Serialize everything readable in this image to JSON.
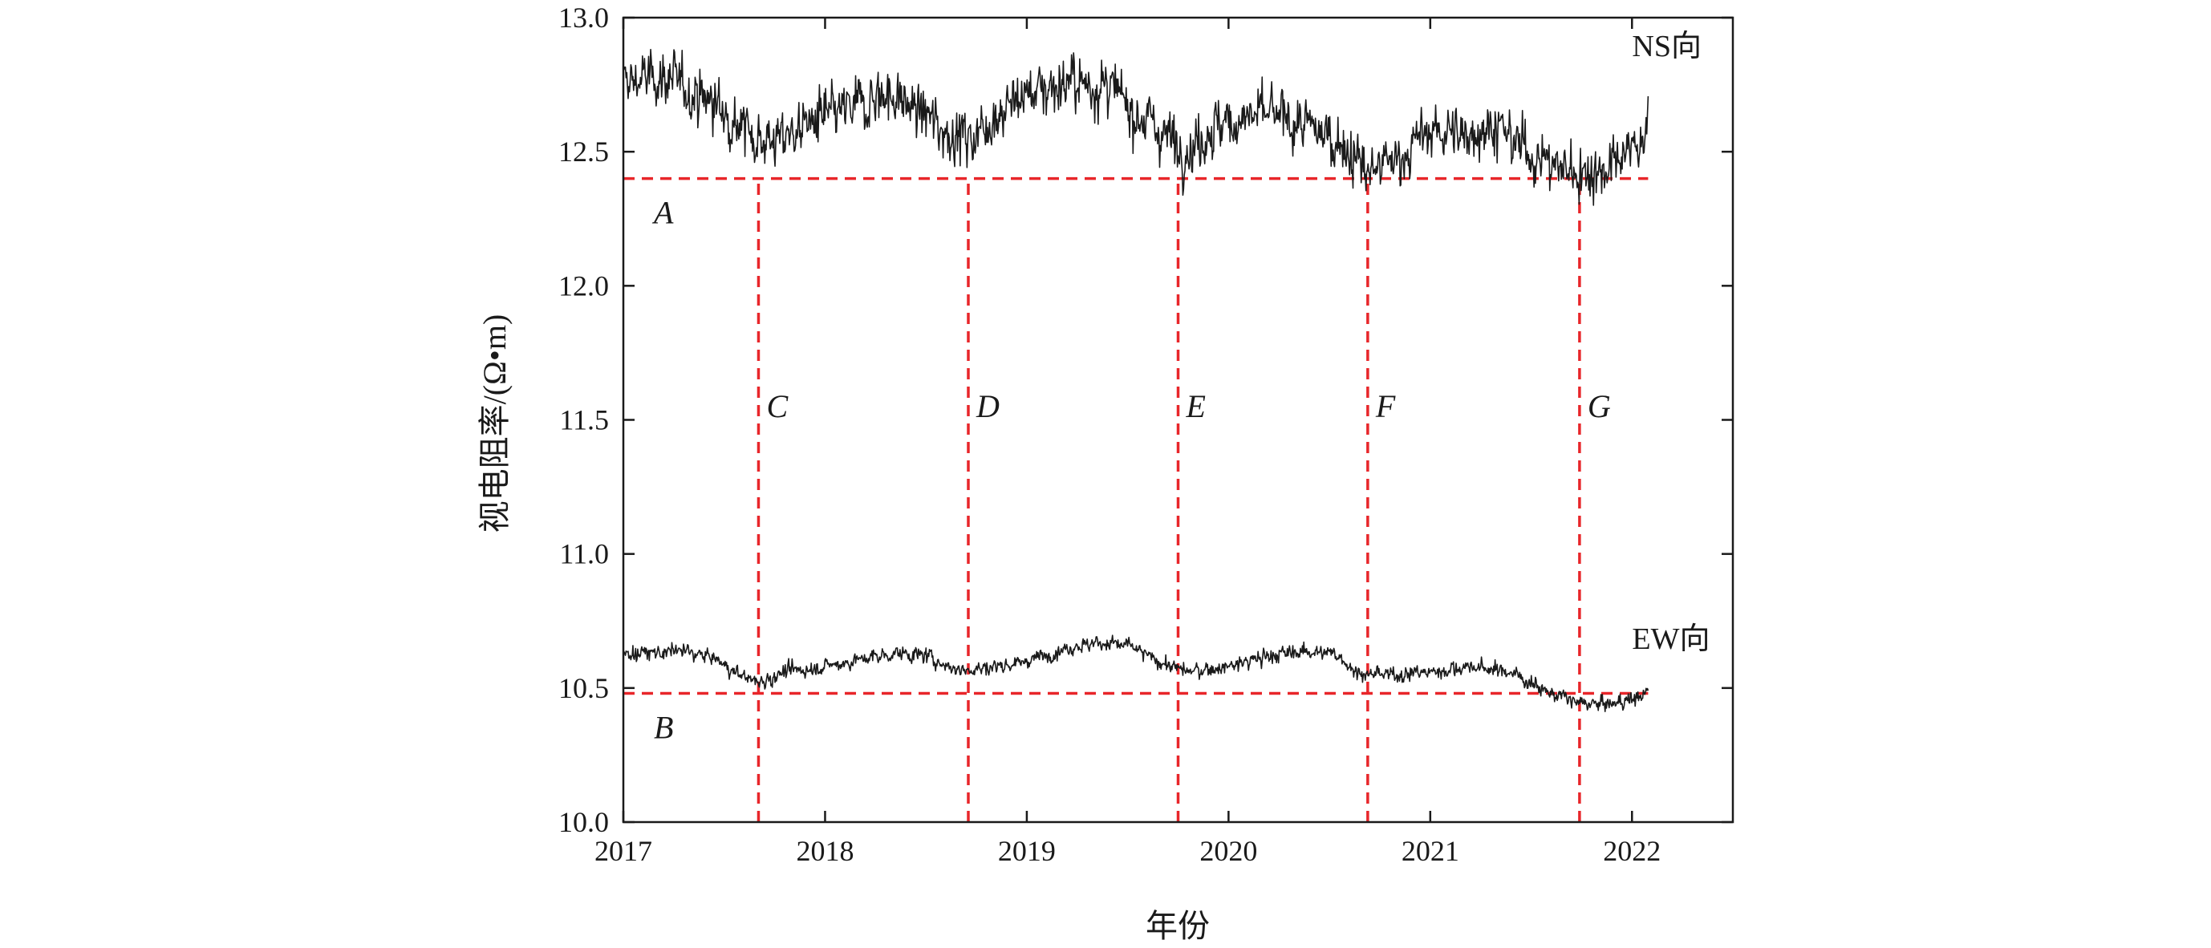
{
  "chart_data": {
    "type": "line",
    "title": "",
    "xlabel": "年份",
    "ylabel": "视电阻率/(Ω•m)",
    "xlim": [
      2017,
      2022.5
    ],
    "ylim": [
      10.0,
      13.0
    ],
    "x_ticks": [
      2017,
      2018,
      2019,
      2020,
      2021,
      2022
    ],
    "x_tick_labels": [
      "2017",
      "2018",
      "2019",
      "2020",
      "2021",
      "2022"
    ],
    "y_ticks": [
      10.0,
      10.5,
      11.0,
      11.5,
      12.0,
      12.5,
      13.0
    ],
    "y_tick_labels": [
      "10.0",
      "10.5",
      "11.0",
      "11.5",
      "12.0",
      "12.5",
      "13.0"
    ],
    "grid": false,
    "colors": {
      "series": "#1a1a1a",
      "reference": "#e8262a",
      "axis": "#1a1a1a"
    },
    "series": [
      {
        "name": "NS向",
        "noise": 0.09,
        "points": [
          [
            2017.0,
            12.76
          ],
          [
            2017.2,
            12.78
          ],
          [
            2017.45,
            12.68
          ],
          [
            2017.65,
            12.56
          ],
          [
            2017.75,
            12.54
          ],
          [
            2017.9,
            12.6
          ],
          [
            2018.1,
            12.65
          ],
          [
            2018.3,
            12.72
          ],
          [
            2018.45,
            12.66
          ],
          [
            2018.6,
            12.58
          ],
          [
            2018.72,
            12.55
          ],
          [
            2018.85,
            12.64
          ],
          [
            2019.0,
            12.72
          ],
          [
            2019.2,
            12.76
          ],
          [
            2019.4,
            12.74
          ],
          [
            2019.55,
            12.64
          ],
          [
            2019.7,
            12.56
          ],
          [
            2019.8,
            12.5
          ],
          [
            2019.9,
            12.58
          ],
          [
            2020.05,
            12.62
          ],
          [
            2020.2,
            12.64
          ],
          [
            2020.35,
            12.6
          ],
          [
            2020.55,
            12.54
          ],
          [
            2020.7,
            12.42
          ],
          [
            2020.85,
            12.48
          ],
          [
            2021.0,
            12.58
          ],
          [
            2021.15,
            12.56
          ],
          [
            2021.3,
            12.6
          ],
          [
            2021.45,
            12.52
          ],
          [
            2021.6,
            12.45
          ],
          [
            2021.75,
            12.42
          ],
          [
            2021.9,
            12.44
          ],
          [
            2022.05,
            12.55
          ],
          [
            2022.08,
            12.6
          ]
        ]
      },
      {
        "name": "EW向",
        "noise": 0.025,
        "points": [
          [
            2017.0,
            10.63
          ],
          [
            2017.15,
            10.63
          ],
          [
            2017.3,
            10.64
          ],
          [
            2017.45,
            10.61
          ],
          [
            2017.55,
            10.56
          ],
          [
            2017.67,
            10.52
          ],
          [
            2017.8,
            10.56
          ],
          [
            2018.0,
            10.58
          ],
          [
            2018.2,
            10.61
          ],
          [
            2018.35,
            10.63
          ],
          [
            2018.5,
            10.62
          ],
          [
            2018.65,
            10.57
          ],
          [
            2018.75,
            10.57
          ],
          [
            2019.0,
            10.6
          ],
          [
            2019.2,
            10.65
          ],
          [
            2019.35,
            10.67
          ],
          [
            2019.5,
            10.66
          ],
          [
            2019.65,
            10.6
          ],
          [
            2019.8,
            10.56
          ],
          [
            2020.0,
            10.58
          ],
          [
            2020.2,
            10.62
          ],
          [
            2020.4,
            10.64
          ],
          [
            2020.55,
            10.62
          ],
          [
            2020.65,
            10.55
          ],
          [
            2020.8,
            10.55
          ],
          [
            2021.0,
            10.56
          ],
          [
            2021.2,
            10.58
          ],
          [
            2021.4,
            10.56
          ],
          [
            2021.5,
            10.52
          ],
          [
            2021.6,
            10.48
          ],
          [
            2021.75,
            10.44
          ],
          [
            2021.9,
            10.44
          ],
          [
            2022.05,
            10.47
          ],
          [
            2022.08,
            10.49
          ]
        ]
      }
    ],
    "reference_lines": [
      {
        "label": "A",
        "orientation": "horizontal",
        "value": 12.4,
        "from": 2017.0,
        "to": 2022.08
      },
      {
        "label": "B",
        "orientation": "horizontal",
        "value": 10.48,
        "from": 2017.0,
        "to": 2022.08
      },
      {
        "label": "C",
        "orientation": "vertical",
        "value": 2017.67,
        "from": 10.0,
        "to": 12.4
      },
      {
        "label": "D",
        "orientation": "vertical",
        "value": 2018.71,
        "from": 10.0,
        "to": 12.4
      },
      {
        "label": "E",
        "orientation": "vertical",
        "value": 2019.75,
        "from": 10.0,
        "to": 12.4
      },
      {
        "label": "F",
        "orientation": "vertical",
        "value": 2020.69,
        "from": 10.0,
        "to": 12.4
      },
      {
        "label": "G",
        "orientation": "vertical",
        "value": 2021.74,
        "from": 10.0,
        "to": 12.4
      }
    ]
  }
}
